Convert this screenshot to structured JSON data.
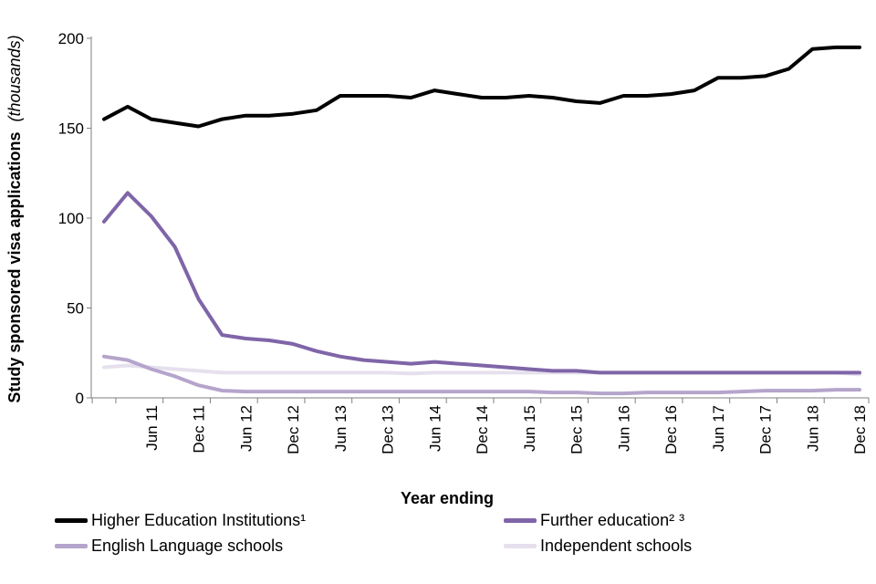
{
  "chart_data": {
    "type": "line",
    "title": "",
    "ylabel": "Study sponsored visa applications",
    "ylabel_unit": "(thousands)",
    "xlabel": "Year ending",
    "ylim": [
      0,
      200
    ],
    "yticks": [
      0,
      50,
      100,
      150,
      200
    ],
    "grid": false,
    "legend_position": "bottom",
    "x": [
      "Dec 10",
      "Mar 11",
      "Jun 11",
      "Sep 11",
      "Dec 11",
      "Mar 12",
      "Jun 12",
      "Sep 12",
      "Dec 12",
      "Mar 13",
      "Jun 13",
      "Sep 13",
      "Dec 13",
      "Mar 14",
      "Jun 14",
      "Sep 14",
      "Dec 14",
      "Mar 15",
      "Jun 15",
      "Sep 15",
      "Dec 15",
      "Mar 16",
      "Jun 16",
      "Sep 16",
      "Dec 16",
      "Mar 17",
      "Jun 17",
      "Sep 17",
      "Dec 17",
      "Mar 18",
      "Jun 18",
      "Sep 18",
      "Dec 18"
    ],
    "x_tick_labels": [
      "Jun 11",
      "Dec 11",
      "Jun 12",
      "Dec 12",
      "Jun 13",
      "Dec 13",
      "Jun 14",
      "Dec 14",
      "Jun 15",
      "Dec 15",
      "Jun 16",
      "Dec 16",
      "Jun 17",
      "Dec 17",
      "Jun 18",
      "Dec 18"
    ],
    "series": [
      {
        "name": "Higher Education Institutions¹",
        "color": "#000000",
        "values": [
          155,
          162,
          155,
          153,
          151,
          155,
          157,
          157,
          158,
          160,
          168,
          168,
          168,
          167,
          171,
          169,
          167,
          167,
          168,
          167,
          165,
          164,
          168,
          168,
          169,
          171,
          178,
          178,
          179,
          183,
          194,
          195,
          195
        ]
      },
      {
        "name": "Further education² ³",
        "color": "#7f65a8",
        "values": [
          98,
          114,
          101,
          84,
          55,
          35,
          33,
          32,
          30,
          26,
          23,
          21,
          20,
          19,
          20,
          19,
          18,
          17,
          16,
          15,
          15,
          14,
          14,
          14,
          14,
          14,
          14,
          14,
          14,
          14,
          14,
          14,
          14
        ]
      },
      {
        "name": "English Language schools",
        "color": "#b5a4cb",
        "values": [
          23,
          21,
          16,
          12,
          7,
          4,
          3.5,
          3.5,
          3.5,
          3.5,
          3.5,
          3.5,
          3.5,
          3.5,
          3.5,
          3.5,
          3.5,
          3.5,
          3.5,
          3,
          3,
          2.5,
          2.5,
          3,
          3,
          3,
          3,
          3.5,
          4,
          4,
          4,
          4.5,
          4.5
        ]
      },
      {
        "name": "Independent schools",
        "color": "#e6e0ee",
        "values": [
          17,
          18,
          17,
          16,
          15,
          14,
          14,
          14,
          14,
          14,
          14,
          14,
          14,
          13.5,
          14,
          14,
          14,
          14,
          14,
          14,
          14,
          14,
          14,
          14,
          14,
          14,
          14,
          14,
          14,
          14,
          14,
          14,
          13
        ]
      }
    ]
  }
}
